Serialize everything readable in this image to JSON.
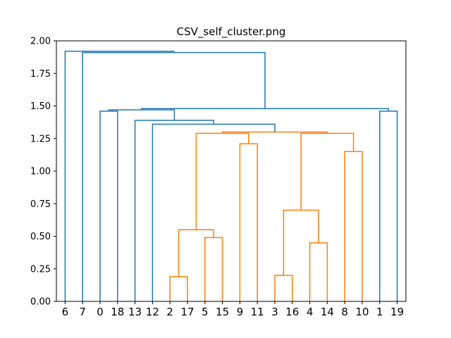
{
  "chart_data": {
    "type": "dendrogram",
    "title": "CSV_self_cluster.png",
    "xlabel": "",
    "ylabel": "",
    "ylim": [
      0,
      2.0
    ],
    "y_ticks": [
      "0.00",
      "0.25",
      "0.50",
      "0.75",
      "1.00",
      "1.25",
      "1.50",
      "1.75",
      "2.00"
    ],
    "leaves": [
      "6",
      "7",
      "0",
      "18",
      "13",
      "12",
      "2",
      "17",
      "5",
      "15",
      "9",
      "11",
      "3",
      "16",
      "4",
      "14",
      "8",
      "10",
      "1",
      "19"
    ],
    "grid": false,
    "colors": {
      "above_threshold": "#1f77b4",
      "cluster": "#ff7f0e"
    },
    "merges": [
      {
        "left": "2",
        "right": "17",
        "height": 0.19,
        "color": "cluster"
      },
      {
        "left": "5",
        "right": "15",
        "height": 0.49,
        "color": "cluster"
      },
      {
        "left": "(2,17)",
        "right": "(5,15)",
        "height": 0.55,
        "color": "cluster"
      },
      {
        "left": "9",
        "right": "11",
        "height": 1.21,
        "color": "cluster"
      },
      {
        "left": "3",
        "right": "16",
        "height": 0.2,
        "color": "cluster"
      },
      {
        "left": "4",
        "right": "14",
        "height": 0.45,
        "color": "cluster"
      },
      {
        "left": "(3,16)",
        "right": "(4,14)",
        "height": 0.7,
        "color": "cluster"
      },
      {
        "left": "8",
        "right": "10",
        "height": 1.15,
        "color": "cluster"
      },
      {
        "left": "(3,16,4,14)",
        "right": "(8,10)",
        "height": 1.29,
        "color": "cluster"
      },
      {
        "left": "(2,17,5,15)",
        "right": "(9,11)",
        "height": 1.29,
        "color": "cluster"
      },
      {
        "left": "(2..11)",
        "right": "(3..10)",
        "height": 1.3,
        "color": "cluster"
      },
      {
        "left": "12",
        "right": "(2..10)",
        "height": 1.36,
        "color": "above_threshold"
      },
      {
        "left": "13",
        "right": "(12..10)",
        "height": 1.39,
        "color": "above_threshold"
      },
      {
        "left": "0",
        "right": "18",
        "height": 1.46,
        "color": "above_threshold"
      },
      {
        "left": "(0,18)",
        "right": "(13..10)",
        "height": 1.47,
        "color": "above_threshold"
      },
      {
        "left": "1",
        "right": "19",
        "height": 1.46,
        "color": "above_threshold"
      },
      {
        "left": "(0..10)",
        "right": "(1,19)",
        "height": 1.48,
        "color": "above_threshold"
      },
      {
        "left": "7",
        "right": "(0..19)",
        "height": 1.91,
        "color": "above_threshold"
      },
      {
        "left": "6",
        "right": "(7..19)",
        "height": 1.92,
        "color": "above_threshold"
      }
    ]
  }
}
